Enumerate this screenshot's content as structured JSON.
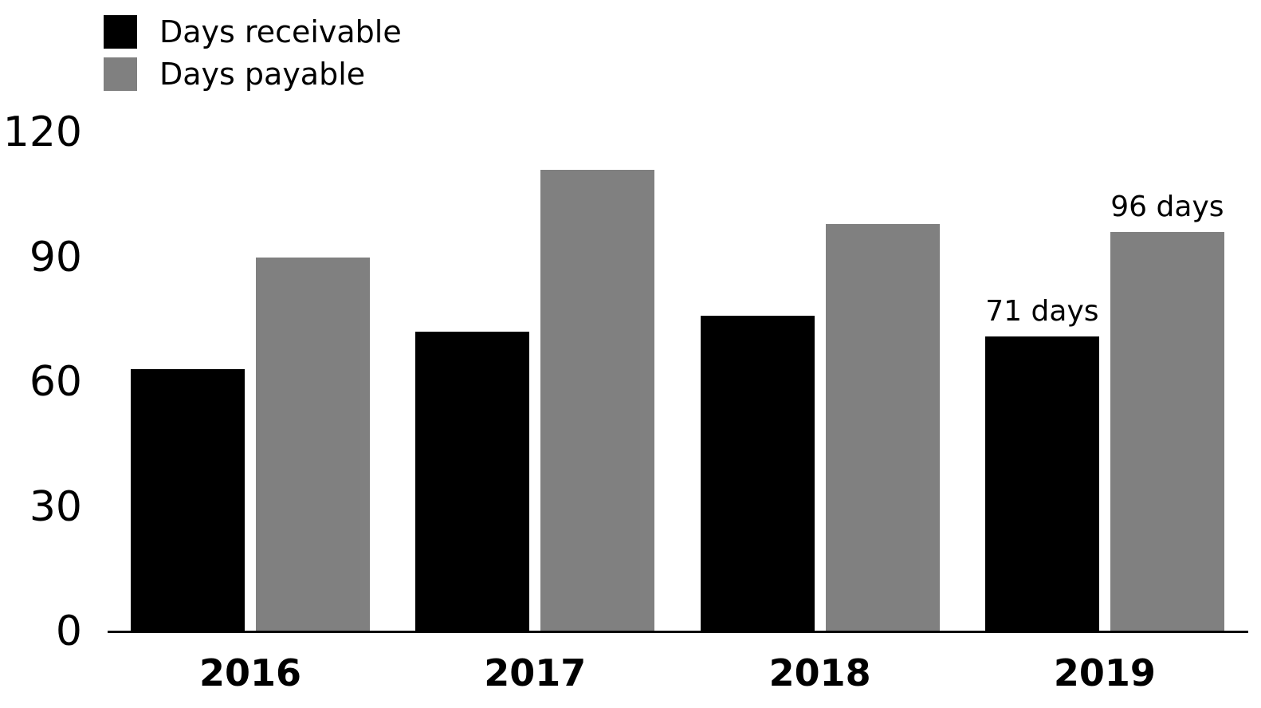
{
  "chart_data": {
    "type": "bar",
    "title": "",
    "xlabel": "",
    "ylabel": "",
    "categories": [
      "2016",
      "2017",
      "2018",
      "2019"
    ],
    "series": [
      {
        "name": "Days receivable",
        "color": "#000000",
        "values": [
          63,
          72,
          76,
          71
        ]
      },
      {
        "name": "Days payable",
        "color": "#808080",
        "values": [
          90,
          111,
          98,
          96
        ]
      }
    ],
    "annotations": [
      {
        "category": "2019",
        "series": "Days receivable",
        "label": "71 days"
      },
      {
        "category": "2019",
        "series": "Days payable",
        "label": "96 days"
      }
    ],
    "yticks": [
      "0",
      "30",
      "60",
      "90",
      "120"
    ],
    "ylim": [
      0,
      120
    ],
    "grid": false,
    "legend_position": "top-left",
    "background_color": "#ffffff",
    "axis_color": "#000000"
  }
}
